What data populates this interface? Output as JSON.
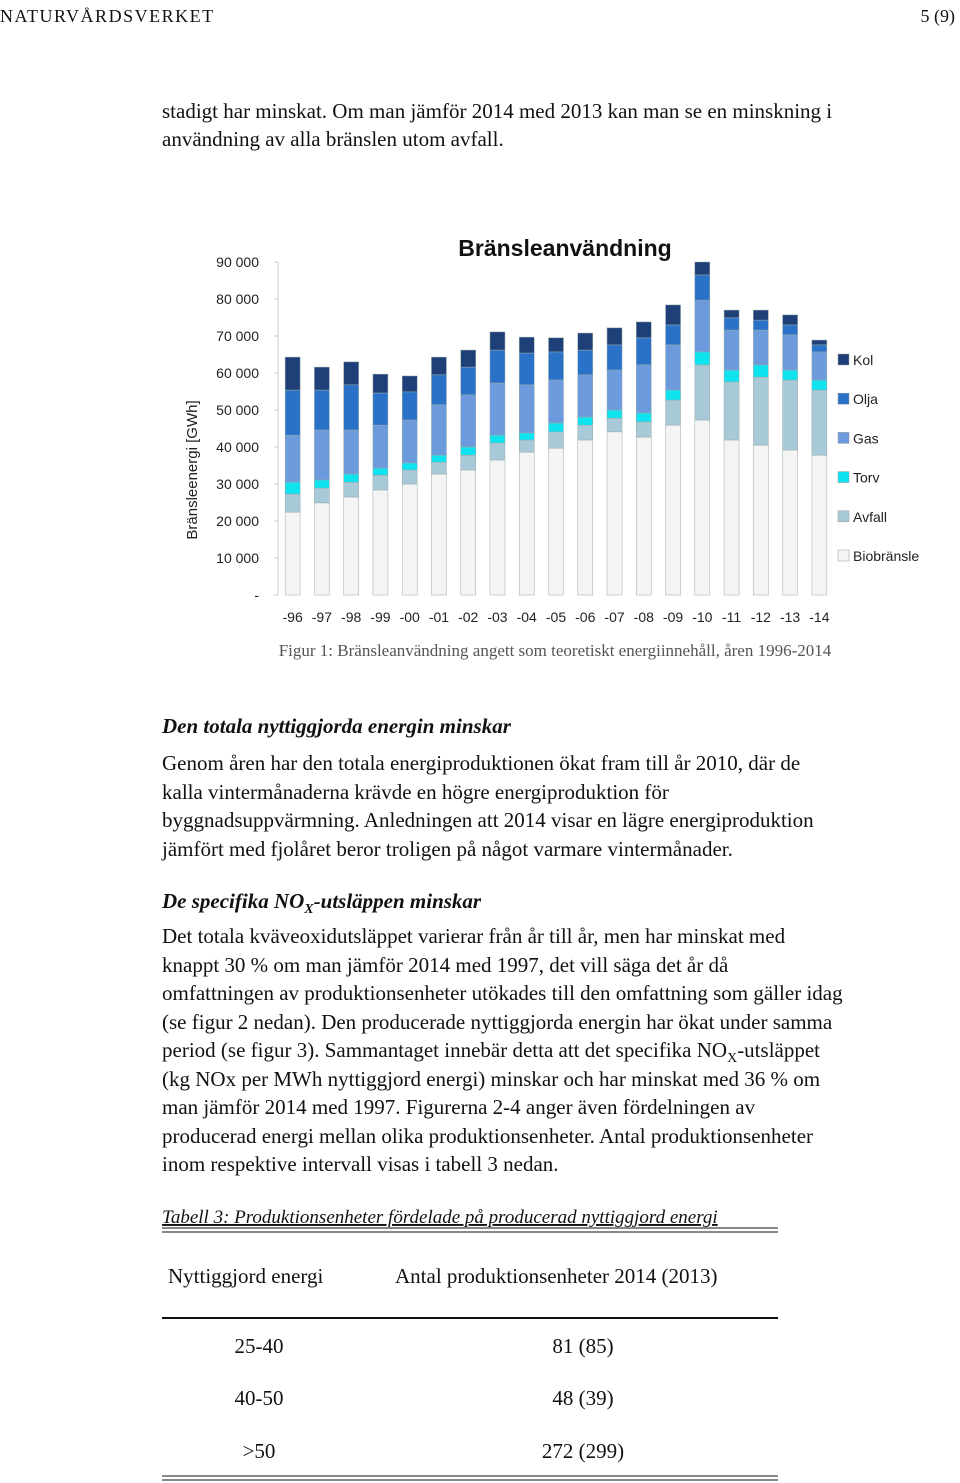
{
  "header": {
    "left": "NATURVÅRDSVERKET",
    "right": "5 (9)"
  },
  "intro": {
    "lines": [
      "stadigt har minskat. Om man jämför 2014 med 2013 kan man se en minskning i",
      "användning av alla bränslen utom avfall."
    ]
  },
  "chart_data": {
    "type": "stacked-bar",
    "title": "Bränsleanvändning",
    "y_label": "Bränsleenergi [GWh]",
    "categories": [
      "-96",
      "-97",
      "-98",
      "-99",
      "-00",
      "-01",
      "-02",
      "-03",
      "-04",
      "-05",
      "-06",
      "-07",
      "-08",
      "-09",
      "-10",
      "-11",
      "-12",
      "-13",
      "-14"
    ],
    "ylim": [
      0,
      90000
    ],
    "yticks": [
      {
        "value": 0,
        "label": "-"
      },
      {
        "value": 10000,
        "label": "10 000"
      },
      {
        "value": 20000,
        "label": "20 000"
      },
      {
        "value": 30000,
        "label": "30 000"
      },
      {
        "value": 40000,
        "label": "40 000"
      },
      {
        "value": 50000,
        "label": "50 000"
      },
      {
        "value": 60000,
        "label": "60 000"
      },
      {
        "value": 70000,
        "label": "70 000"
      },
      {
        "value": 80000,
        "label": "80 000"
      },
      {
        "value": 90000,
        "label": "90 000"
      }
    ],
    "series": [
      {
        "name": "Biobränsle",
        "color": "#f4f4f4",
        "values": [
          22400,
          24900,
          26500,
          28400,
          30000,
          32700,
          33800,
          36500,
          38600,
          39700,
          41900,
          44100,
          42700,
          45900,
          47300,
          41900,
          40500,
          39200,
          37800
        ]
      },
      {
        "name": "Avfall",
        "color": "#a8c9d8",
        "values": [
          4900,
          4000,
          4000,
          4000,
          3800,
          3200,
          4000,
          4600,
          3300,
          4400,
          4000,
          3700,
          4100,
          6800,
          14900,
          15700,
          18400,
          18900,
          17600
        ]
      },
      {
        "name": "Torv",
        "color": "#0fe3f0",
        "values": [
          3200,
          2200,
          2200,
          1900,
          1900,
          1900,
          2200,
          2100,
          1900,
          2400,
          2200,
          2200,
          2400,
          2700,
          3500,
          3200,
          3300,
          2700,
          2700
        ]
      },
      {
        "name": "Gas",
        "color": "#6b9bdc",
        "values": [
          12700,
          13500,
          11900,
          11600,
          11600,
          13600,
          14100,
          14100,
          13000,
          11600,
          11400,
          10800,
          13000,
          12200,
          14000,
          10800,
          9400,
          9500,
          7600
        ]
      },
      {
        "name": "Olja",
        "color": "#2a72c8",
        "values": [
          12200,
          10800,
          12200,
          8700,
          7600,
          8100,
          7500,
          8900,
          8600,
          7600,
          6700,
          6800,
          7300,
          5400,
          6800,
          3300,
          2700,
          2700,
          1900
        ]
      },
      {
        "name": "Kol",
        "color": "#1e3f78",
        "values": [
          8900,
          6200,
          6200,
          5100,
          4300,
          4800,
          4600,
          4900,
          4300,
          3800,
          4600,
          4600,
          4300,
          5400,
          3500,
          2100,
          2700,
          2700,
          1300
        ]
      }
    ],
    "legend": "right"
  },
  "figure_caption": "Figur 1: Bränsleanvändning angett som teoretiskt energiinnehåll, åren 1996-2014",
  "section1": {
    "heading": "Den totala nyttiggjorda energin minskar",
    "lines": [
      "Genom åren har den totala energiproduktionen ökat fram till år 2010, där de",
      "kalla vintermånaderna krävde en högre energiproduktion för",
      "byggnadsuppvärmning. Anledningen att 2014 visar en lägre energiproduktion",
      "jämfört med fjolåret beror troligen på något varmare vintermånader."
    ]
  },
  "section2": {
    "heading": {
      "before": "De specifika NO",
      "sub": "X",
      "after": "-utsläppen minskar"
    },
    "lines": [
      "Det totala kväveoxidutsläppet varierar från år till år, men har minskat med",
      "knappt 30 % om man jämför 2014 med 1997, det vill säga det år då",
      "omfattningen av produktionsenheter utökades till den omfattning som gäller idag",
      "(se figur 2 nedan). Den producerade nyttiggjorda energin har ökat under samma"
    ],
    "line5": {
      "before": "period (se figur 3). Sammantaget innebär detta att det specifika NO",
      "sub": "X",
      "after": "-utsläppet"
    },
    "rest": [
      "(kg NOx per MWh nyttiggjord energi) minskar och har minskat med 36 % om",
      "man jämför 2014 med 1997. Figurerna 2-4 anger även fördelningen av",
      "producerad energi mellan olika produktionsenheter. Antal produktionsenheter",
      "inom respektive intervall visas i tabell 3 nedan."
    ]
  },
  "table": {
    "caption": "Tabell 3: Produktionsenheter fördelade på producerad nyttiggjord energi",
    "headers": [
      "Nyttiggjord energi",
      "Antal produktionsenheter 2014 (2013)"
    ],
    "rows": [
      [
        "25-40",
        "81 (85)"
      ],
      [
        "40-50",
        "48 (39)"
      ],
      [
        ">50",
        "272 (299)"
      ]
    ]
  }
}
